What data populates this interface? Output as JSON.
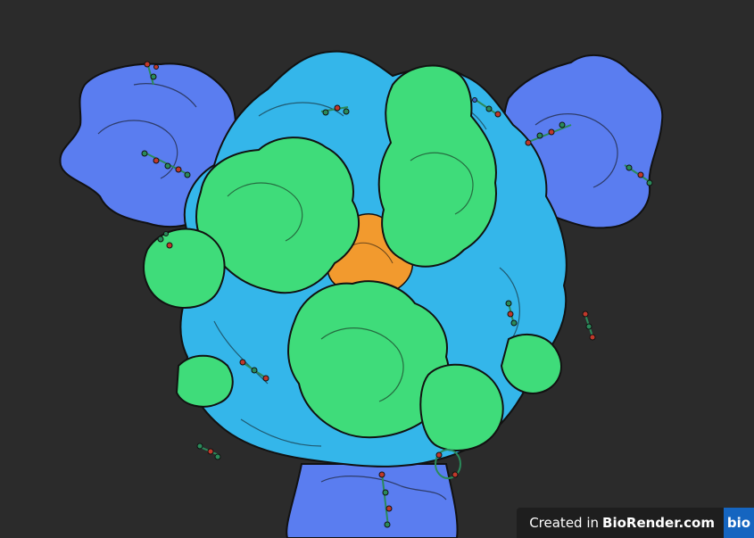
{
  "watermark": {
    "prefix": "Created in",
    "brand": "BioRender.com",
    "logo_text": "bio"
  },
  "colors": {
    "background": "#2b2b2b",
    "blue_domain": "#5a7df0",
    "cyan_domain": "#34b6ea",
    "green_domain": "#3fdc7a",
    "core": "#f29a2e",
    "outline": "#111111"
  }
}
